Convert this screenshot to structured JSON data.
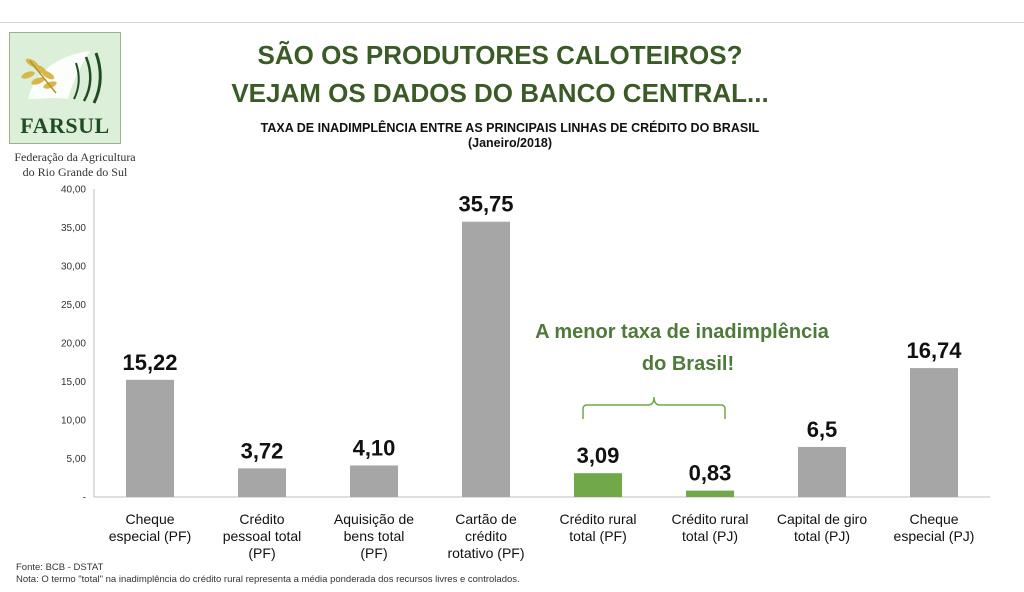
{
  "logo": {
    "name": "FARSUL",
    "caption_line1": "Federação da Agricultura",
    "caption_line2": "do Rio Grande do Sul",
    "colors": {
      "background": "#dcefd8",
      "text": "#1f4d23",
      "wheat": "#d9b64a"
    }
  },
  "headline": {
    "line1": "SÃO OS PRODUTORES CALOTEIROS?",
    "line2": "VEJAM OS DADOS DO BANCO CENTRAL..."
  },
  "chart_data": {
    "type": "bar",
    "title": "TAXA DE INADIMPLÊNCIA ENTRE AS PRINCIPAIS LINHAS DE CRÉDITO DO BRASIL",
    "subtitle": "(Janeiro/2018)",
    "categories": [
      [
        "Cheque",
        "especial (PF)"
      ],
      [
        "Crédito",
        "pessoal total",
        "(PF)"
      ],
      [
        "Aquisição de",
        "bens total",
        "(PF)"
      ],
      [
        "Cartão de",
        "crédito",
        "rotativo (PF)"
      ],
      [
        "Crédito rural",
        "total (PF)"
      ],
      [
        "Crédito rural",
        "total (PJ)"
      ],
      [
        "Capital de giro",
        "total (PJ)"
      ],
      [
        "Cheque",
        "especial (PJ)"
      ]
    ],
    "values": [
      15.22,
      3.72,
      4.1,
      35.75,
      3.09,
      0.83,
      6.5,
      16.74
    ],
    "value_labels": [
      "15,22",
      "3,72",
      "4,10",
      "35,75",
      "3,09",
      "0,83",
      "6,5",
      "16,74"
    ],
    "highlight": [
      false,
      false,
      false,
      false,
      true,
      true,
      false,
      false
    ],
    "colors": {
      "default": "#a6a6a6",
      "highlight": "#70a84a",
      "annotation": "#4e7a3a"
    },
    "ylim": [
      0,
      40
    ],
    "yticks": [
      0,
      5,
      10,
      15,
      20,
      25,
      30,
      35,
      40
    ],
    "ytick_labels": [
      "-",
      "5,00",
      "10,00",
      "15,00",
      "20,00",
      "25,00",
      "30,00",
      "35,00",
      "40,00"
    ],
    "xlabel": "",
    "ylabel": "",
    "grid": false,
    "annotation": {
      "line1": "A menor taxa de inadimplência",
      "line2": "do Brasil!",
      "spans_categories": [
        4,
        5
      ]
    }
  },
  "footer": {
    "source": "Fonte: BCB - DSTAT",
    "note": "Nota: O termo \"total\" na inadimplência do crédito rural representa a média ponderada dos recursos livres e controlados."
  }
}
